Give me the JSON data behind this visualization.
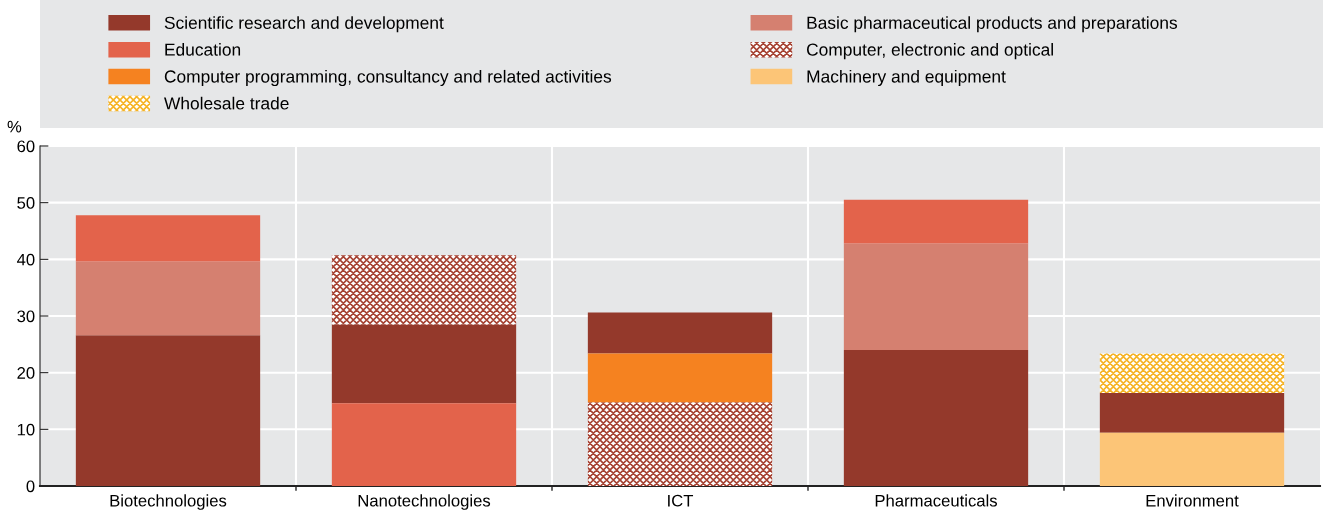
{
  "chart_data": {
    "type": "bar",
    "ylabel": "%",
    "categories": [
      "Biotechnologies",
      "Nanotechnologies",
      "ICT",
      "Pharmaceuticals",
      "Environment"
    ],
    "series": [
      {
        "name": "Scientific research and development",
        "color": "#94392b",
        "values": [
          26.6,
          13.9,
          7.2,
          24.0,
          7.0
        ],
        "base": [
          0,
          14.6,
          23.4,
          0,
          9.4
        ]
      },
      {
        "name": "Basic pharmaceutical products and preparations",
        "color": "#d58070",
        "values": [
          13.0,
          null,
          null,
          18.8,
          null
        ],
        "base": [
          26.6,
          null,
          null,
          24.0,
          null
        ]
      },
      {
        "name": "Education",
        "color": "#e3634b",
        "values": [
          8.2,
          14.6,
          null,
          7.7,
          null
        ],
        "base": [
          39.6,
          0,
          null,
          42.8,
          null
        ]
      },
      {
        "name": "Computer, electronic and optical",
        "color": "#a64232",
        "values": [
          null,
          12.2,
          14.8,
          null,
          null
        ],
        "base": [
          null,
          28.5,
          0,
          null,
          null
        ]
      },
      {
        "name": "Computer programming, consultancy and related activities",
        "color": "#f58220",
        "values": [
          null,
          null,
          8.6,
          null,
          null
        ],
        "base": [
          null,
          null,
          14.8,
          null,
          null
        ]
      },
      {
        "name": "Machinery and equipment",
        "color": "#fcc577",
        "values": [
          null,
          null,
          null,
          null,
          9.4
        ],
        "base": [
          null,
          null,
          null,
          null,
          0
        ]
      },
      {
        "name": "Wholesale trade",
        "color": "#f6b324",
        "values": [
          null,
          null,
          null,
          null,
          7.0
        ],
        "base": [
          null,
          null,
          null,
          null,
          16.4
        ]
      }
    ],
    "ylim": [
      0,
      60
    ],
    "yticks": [
      0,
      10,
      20,
      30,
      40,
      50,
      60
    ],
    "grid": "y",
    "legend": "top"
  }
}
